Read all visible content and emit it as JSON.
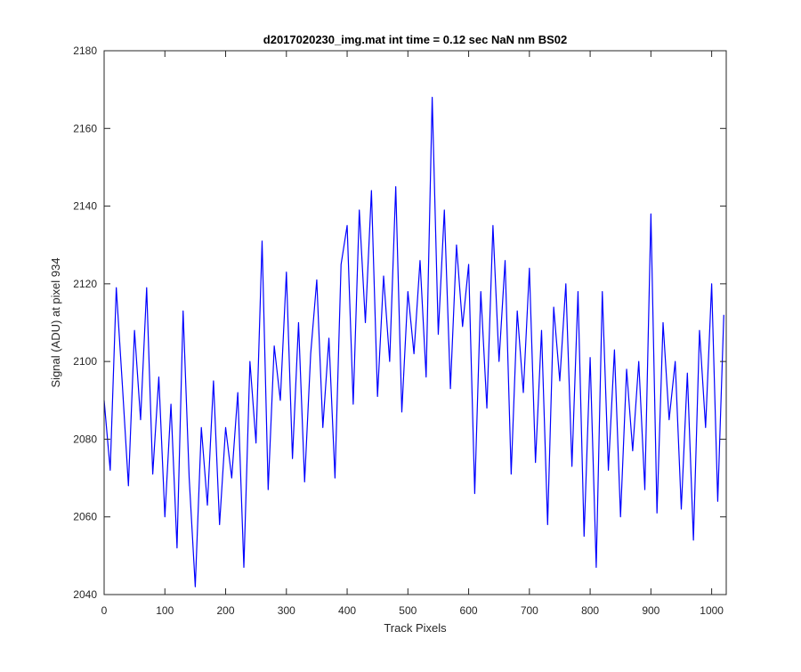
{
  "chart_data": {
    "type": "line",
    "title": "d2017020230_img.mat int time = 0.12 sec  NaN nm BS02",
    "xlabel": "Track Pixels",
    "ylabel": "Signal (ADU) at pixel 934",
    "xlim": [
      0,
      1024
    ],
    "ylim": [
      2040,
      2180
    ],
    "xticks": [
      0,
      100,
      200,
      300,
      400,
      500,
      600,
      700,
      800,
      900,
      1000
    ],
    "yticks": [
      2040,
      2060,
      2080,
      2100,
      2120,
      2140,
      2160,
      2180
    ],
    "grid": false,
    "series": [
      {
        "color": "#0000ff",
        "x": [
          0,
          10,
          20,
          30,
          40,
          50,
          60,
          70,
          80,
          90,
          100,
          110,
          120,
          130,
          140,
          150,
          160,
          170,
          180,
          190,
          200,
          210,
          220,
          230,
          240,
          250,
          260,
          270,
          280,
          290,
          300,
          310,
          320,
          330,
          340,
          350,
          360,
          370,
          380,
          390,
          400,
          410,
          420,
          430,
          440,
          450,
          460,
          470,
          480,
          490,
          500,
          510,
          520,
          530,
          540,
          550,
          560,
          570,
          580,
          590,
          600,
          610,
          620,
          630,
          640,
          650,
          660,
          670,
          680,
          690,
          700,
          710,
          720,
          730,
          740,
          750,
          760,
          770,
          780,
          790,
          800,
          810,
          820,
          830,
          840,
          850,
          860,
          870,
          880,
          890,
          900,
          910,
          920,
          930,
          940,
          950,
          960,
          970,
          980,
          990,
          1000,
          1010,
          1020
        ],
        "values": [
          2090,
          2072,
          2119,
          2094,
          2068,
          2108,
          2085,
          2119,
          2071,
          2096,
          2060,
          2089,
          2052,
          2113,
          2070,
          2042,
          2083,
          2063,
          2095,
          2058,
          2083,
          2070,
          2092,
          2047,
          2100,
          2079,
          2131,
          2067,
          2104,
          2090,
          2123,
          2075,
          2110,
          2069,
          2102,
          2121,
          2083,
          2106,
          2070,
          2125,
          2135,
          2089,
          2139,
          2110,
          2144,
          2091,
          2122,
          2100,
          2145,
          2087,
          2118,
          2102,
          2126,
          2096,
          2168,
          2107,
          2139,
          2093,
          2130,
          2109,
          2125,
          2066,
          2118,
          2088,
          2135,
          2100,
          2126,
          2071,
          2113,
          2092,
          2124,
          2074,
          2108,
          2058,
          2114,
          2095,
          2120,
          2073,
          2118,
          2055,
          2101,
          2047,
          2118,
          2072,
          2103,
          2060,
          2098,
          2077,
          2100,
          2067,
          2138,
          2061,
          2110,
          2085,
          2100,
          2062,
          2097,
          2054,
          2108,
          2083,
          2120,
          2064,
          2112
        ]
      }
    ]
  }
}
